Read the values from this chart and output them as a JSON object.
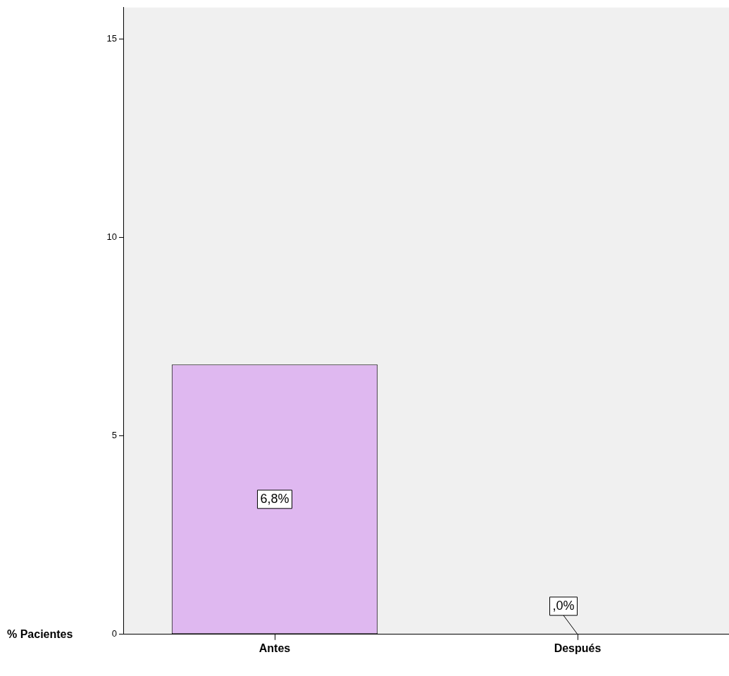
{
  "chart_data": {
    "type": "bar",
    "ylabel": "% Pacientes",
    "categories": [
      "Antes",
      "Después"
    ],
    "values": [
      6.8,
      0
    ],
    "color": "#dfb8f0",
    "value_labels": [
      "6,8%",
      ",0%"
    ],
    "ylim": [
      0,
      15.8
    ],
    "yticks": [
      0,
      5,
      10,
      15
    ],
    "grid": false,
    "legend": false
  }
}
